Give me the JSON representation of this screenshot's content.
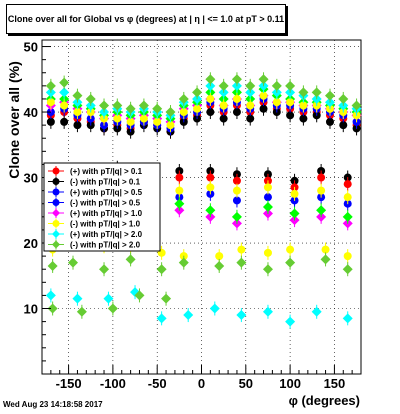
{
  "title": "Clone  over all for Global vs φ (degrees) at | η | <= 1.0 at pT > 0.11",
  "footer": "Wed Aug 23 14:18:58 2017",
  "chart_data": {
    "type": "scatter",
    "title": "Clone  over all for Global vs φ (degrees) at | η | <= 1.0 at pT > 0.11",
    "xlabel": "φ (degrees)",
    "ylabel": "Clone  over all (%)",
    "xlim": [
      -180,
      180
    ],
    "ylim": [
      0,
      51
    ],
    "xticks": [
      -150,
      -100,
      -50,
      0,
      50,
      100,
      150
    ],
    "yticks": [
      10,
      20,
      30,
      40,
      50
    ],
    "grid": true,
    "legend_position": "left-center",
    "legend_entries": [
      "(+) with pT/|q| > 0.1",
      "(-) with pT/|q| > 0.1",
      "(+) with pT/|q| > 0.5",
      "(-) with pT/|q| > 0.5",
      "(+) with pT/|q| > 1.0",
      "(-) with pT/|q| > 1.0",
      "(+) with pT/|q| > 2.0",
      "(-) with pT/|q| > 2.0"
    ],
    "series": [
      {
        "color": "#ff0000",
        "marker": "circle",
        "x": [
          -170,
          -155,
          -140,
          -125,
          -110,
          -95,
          -80,
          -65,
          -50,
          -35,
          -20,
          -5,
          10,
          25,
          40,
          55,
          70,
          85,
          100,
          115,
          130,
          145,
          160,
          175
        ],
        "y": [
          39.5,
          40,
          39,
          38.5,
          37.5,
          38,
          37.5,
          38.5,
          38,
          37,
          39,
          39.5,
          41,
          40,
          41,
          40,
          41.5,
          40.5,
          40.5,
          40,
          40,
          39.5,
          39,
          38
        ]
      },
      {
        "color": "#000000",
        "marker": "circle",
        "x": [
          -170,
          -155,
          -140,
          -125,
          -110,
          -95,
          -80,
          -65,
          -50,
          -35,
          -20,
          -5,
          10,
          25,
          40,
          55,
          70,
          85,
          100,
          115,
          130,
          145,
          160,
          175
        ],
        "y": [
          38.5,
          38.5,
          38,
          38,
          37.5,
          37.5,
          37,
          38,
          37.5,
          37,
          38.5,
          39,
          40,
          39,
          40,
          39,
          40.5,
          40,
          39.5,
          39,
          39.5,
          38.5,
          38,
          37.5
        ]
      },
      {
        "color": "#0000ff",
        "marker": "circle",
        "x": [
          -170,
          -155,
          -140,
          -125,
          -110,
          -95,
          -80,
          -65,
          -50,
          -35,
          -20,
          -5,
          10,
          25,
          40,
          55,
          70,
          85,
          100,
          115,
          130,
          145,
          160,
          175
        ],
        "y": [
          40,
          40.5,
          39.5,
          39,
          38,
          38.5,
          38,
          38.5,
          38,
          37.5,
          39.5,
          40,
          41.5,
          40.5,
          41.5,
          40.5,
          42,
          41,
          41,
          40.5,
          40.5,
          40,
          39.5,
          38.5
        ]
      },
      {
        "color": "#ff00ff",
        "marker": "diamond",
        "x": [
          -170,
          -155,
          -140,
          -125,
          -110,
          -95,
          -80,
          -65,
          -50,
          -35,
          -20,
          -5,
          10,
          25,
          40,
          55,
          70,
          85,
          100,
          115,
          130,
          145,
          160,
          175
        ],
        "y": [
          41,
          41.5,
          40.5,
          40,
          39,
          39.5,
          39,
          39.5,
          39,
          38.5,
          40.5,
          41,
          42,
          41,
          42,
          41,
          42.5,
          41.5,
          41.5,
          41,
          41,
          40.5,
          40,
          39.5
        ]
      },
      {
        "color": "#00ff00",
        "marker": "diamond",
        "x": [
          -170,
          -155,
          -140,
          -125,
          -110,
          -95,
          -80,
          -65,
          -50,
          -35,
          -20,
          -5,
          10,
          25,
          40,
          55,
          70,
          85,
          100,
          115,
          130,
          145,
          160,
          175
        ],
        "y": [
          42,
          42,
          41,
          40.5,
          39.5,
          40,
          39.5,
          40,
          39.5,
          39,
          41,
          41.5,
          43,
          42,
          43,
          42,
          43.5,
          42.5,
          42,
          41.5,
          41.5,
          41,
          40.5,
          40
        ]
      },
      {
        "color": "#ffff00",
        "marker": "circle",
        "x": [
          -170,
          -155,
          -140,
          -125,
          -110,
          -95,
          -80,
          -65,
          -50,
          -35,
          -20,
          -5,
          10,
          25,
          40,
          55,
          70,
          85,
          100,
          115,
          130,
          145,
          160,
          175
        ],
        "y": [
          41.5,
          41,
          40,
          40,
          39,
          39,
          38.5,
          39,
          38.5,
          38,
          40,
          40.5,
          42,
          41,
          42,
          41,
          42.5,
          41.5,
          41.5,
          41,
          41,
          40.5,
          40,
          39.5
        ]
      },
      {
        "color": "#00ffff",
        "marker": "diamond",
        "x": [
          -170,
          -155,
          -140,
          -125,
          -110,
          -95,
          -80,
          -65,
          -50,
          -35,
          -20,
          -5,
          10,
          25,
          40,
          55,
          70,
          85,
          100,
          115,
          130,
          145,
          160,
          175
        ],
        "y": [
          43,
          43,
          41.5,
          41,
          40,
          40.5,
          40,
          40.5,
          40,
          39.5,
          41.5,
          42,
          44,
          43,
          44,
          43,
          44,
          43,
          43,
          42.5,
          42,
          41.5,
          41,
          40.5
        ]
      },
      {
        "color": "#66cc33",
        "marker": "diamond",
        "x": [
          -170,
          -155,
          -140,
          -125,
          -110,
          -95,
          -80,
          -65,
          -50,
          -35,
          -20,
          -5,
          10,
          25,
          40,
          55,
          70,
          85,
          100,
          115,
          130,
          145,
          160,
          175
        ],
        "y": [
          44,
          44.5,
          42.5,
          42,
          41,
          41,
          40.5,
          41,
          40.5,
          40,
          42,
          43,
          45,
          44,
          45,
          44,
          45,
          44,
          44,
          43,
          43,
          42.5,
          42,
          41
        ]
      },
      {
        "color": "#000000",
        "marker": "circle",
        "x": [
          -165,
          -130,
          -95,
          -60,
          -25,
          10,
          40,
          75,
          105,
          135,
          165
        ],
        "y": [
          31,
          30,
          31.5,
          30,
          31,
          31,
          30.5,
          30.5,
          29.5,
          31,
          30
        ]
      },
      {
        "color": "#ff0000",
        "marker": "circle",
        "x": [
          -165,
          -130,
          -95,
          -60,
          -25,
          10,
          40,
          75,
          105,
          135,
          165
        ],
        "y": [
          30,
          29,
          30.5,
          29,
          30,
          30,
          29.5,
          29.5,
          28.5,
          30,
          29
        ]
      },
      {
        "color": "#0000ff",
        "marker": "circle",
        "x": [
          -165,
          -130,
          -95,
          -60,
          -25,
          10,
          40,
          75,
          105,
          135,
          165
        ],
        "y": [
          27,
          26.5,
          28,
          27.5,
          27,
          27.5,
          26.5,
          27,
          26.5,
          27,
          26
        ]
      },
      {
        "color": "#ffff00",
        "marker": "circle",
        "x": [
          -165,
          -130,
          -95,
          -60,
          -25,
          10,
          40,
          75,
          105,
          135,
          165
        ],
        "y": [
          28,
          27.5,
          29,
          28,
          28,
          28.5,
          28,
          28.5,
          27.5,
          28,
          27
        ]
      },
      {
        "color": "#ff00ff",
        "marker": "diamond",
        "x": [
          -165,
          -130,
          -95,
          -60,
          -25,
          10,
          40,
          75,
          105,
          135,
          165
        ],
        "y": [
          24,
          25,
          24.5,
          23.5,
          25,
          24,
          23,
          24.5,
          23.5,
          24,
          23
        ]
      },
      {
        "color": "#00ff00",
        "marker": "diamond",
        "x": [
          -165,
          -130,
          -95,
          -60,
          -25,
          10,
          40,
          75,
          105,
          135,
          165
        ],
        "y": [
          25,
          25.5,
          25.5,
          24.5,
          26,
          25,
          24,
          25.5,
          24.5,
          25,
          24
        ]
      },
      {
        "color": "#ffff00",
        "marker": "circle",
        "x": [
          -168,
          -145,
          -110,
          -80,
          -45,
          -20,
          20,
          45,
          75,
          100,
          140,
          165
        ],
        "y": [
          19,
          20,
          19.5,
          19.5,
          18.5,
          18,
          18,
          19,
          18.5,
          19,
          19,
          18
        ]
      },
      {
        "color": "#66cc33",
        "marker": "diamond",
        "x": [
          -168,
          -145,
          -110,
          -80,
          -45,
          -20,
          20,
          45,
          75,
          100,
          140,
          165
        ],
        "y": [
          16.5,
          17,
          16,
          17.5,
          16,
          17,
          16.5,
          17,
          16,
          17,
          17.5,
          16
        ]
      },
      {
        "color": "#00ffff",
        "marker": "diamond",
        "x": [
          -170,
          -140,
          -105,
          -75,
          -45,
          -15,
          15,
          45,
          75,
          100,
          130,
          165
        ],
        "y": [
          12,
          11.5,
          11.5,
          12.5,
          8.5,
          9,
          10,
          9,
          9.5,
          8,
          9.5,
          8.5
        ]
      },
      {
        "color": "#66cc33",
        "marker": "diamond",
        "x": [
          -168,
          -135,
          -100,
          -70,
          -40
        ],
        "y": [
          10,
          9.5,
          10,
          12,
          11.5
        ]
      }
    ]
  }
}
